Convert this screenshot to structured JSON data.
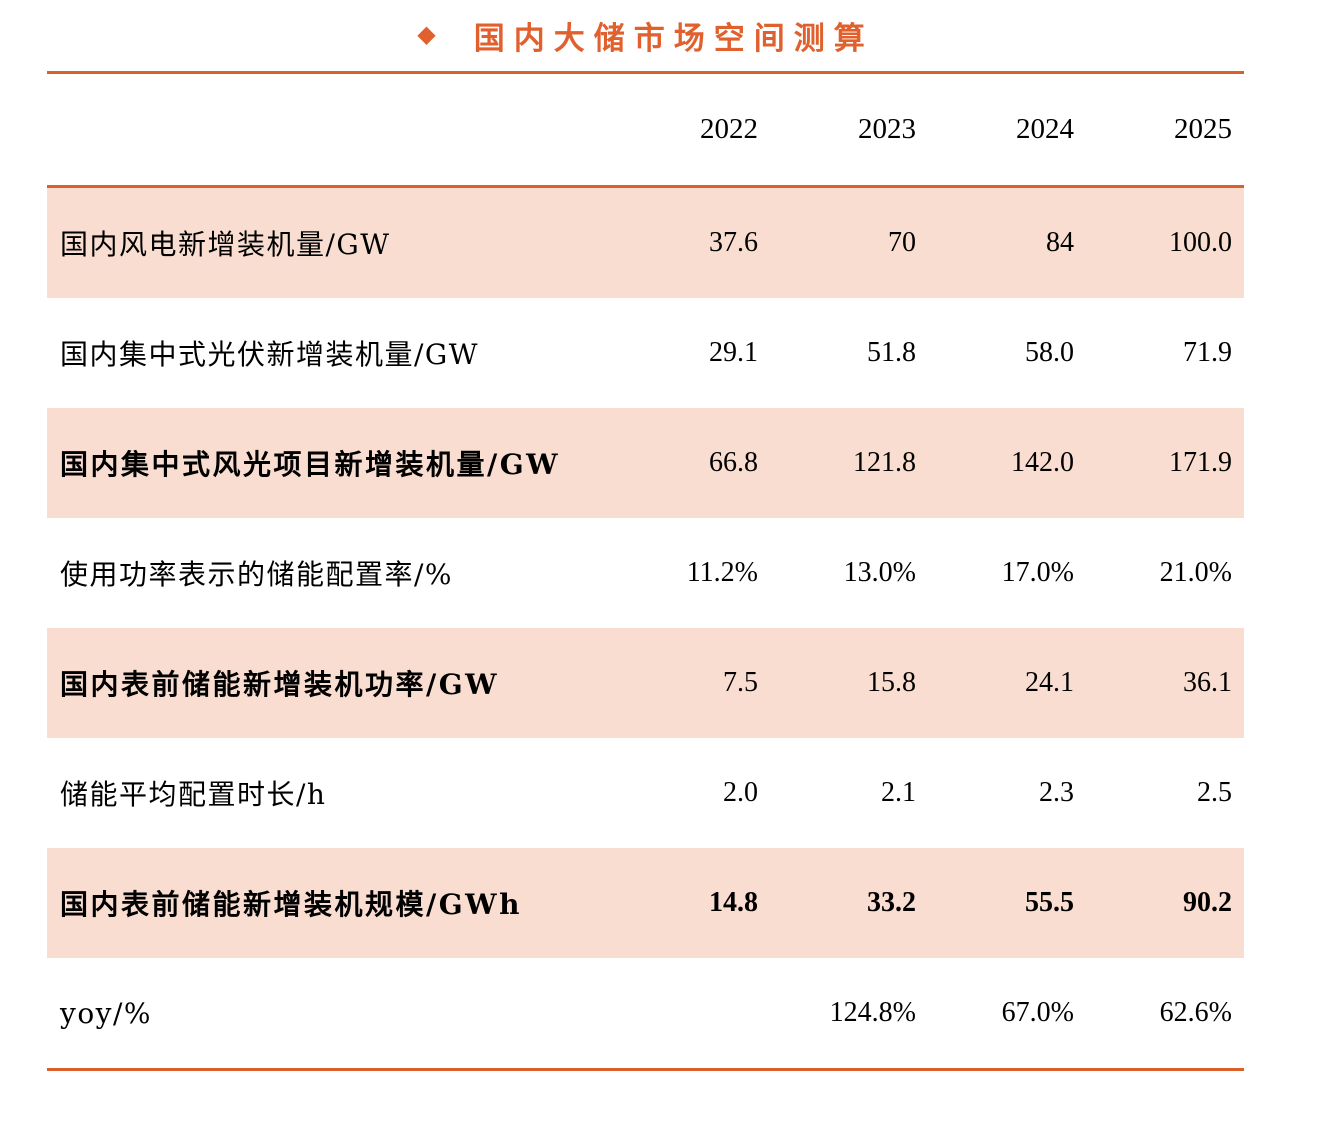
{
  "title": {
    "bullet": "◆",
    "text": "国内大储市场空间测算"
  },
  "columns": [
    "2022",
    "2023",
    "2024",
    "2025"
  ],
  "rows": [
    {
      "label": "国内风电新增装机量/GW",
      "values": [
        "37.6",
        "70",
        "84",
        "100.0"
      ]
    },
    {
      "label": "国内集中式光伏新增装机量/GW",
      "values": [
        "29.1",
        "51.8",
        "58.0",
        "71.9"
      ]
    },
    {
      "label": "国内集中式风光项目新增装机量/GW",
      "values": [
        "66.8",
        "121.8",
        "142.0",
        "171.9"
      ]
    },
    {
      "label": "使用功率表示的储能配置率/%",
      "values": [
        "11.2%",
        "13.0%",
        "17.0%",
        "21.0%"
      ]
    },
    {
      "label": "国内表前储能新增装机功率/GW",
      "values": [
        "7.5",
        "15.8",
        "24.1",
        "36.1"
      ]
    },
    {
      "label": "储能平均配置时长/h",
      "values": [
        "2.0",
        "2.1",
        "2.3",
        "2.5"
      ]
    },
    {
      "label": "国内表前储能新增装机规模/GWh",
      "values": [
        "14.8",
        "33.2",
        "55.5",
        "90.2"
      ]
    },
    {
      "label": "yoy/%",
      "values": [
        "",
        "124.8%",
        "67.0%",
        "62.6%"
      ]
    }
  ],
  "colors": {
    "accent_orange": "#d95f2b",
    "title_orange": "#e0612e",
    "row_shade": "#f9ddd0",
    "text": "#000000"
  },
  "chart_data": {
    "type": "table",
    "title": "国内大储市场空间测算",
    "columns": [
      "",
      "2022",
      "2023",
      "2024",
      "2025"
    ],
    "rows": [
      [
        "国内风电新增装机量/GW",
        37.6,
        70,
        84,
        100.0
      ],
      [
        "国内集中式光伏新增装机量/GW",
        29.1,
        51.8,
        58.0,
        71.9
      ],
      [
        "国内集中式风光项目新增装机量/GW",
        66.8,
        121.8,
        142.0,
        171.9
      ],
      [
        "使用功率表示的储能配置率/%",
        "11.2%",
        "13.0%",
        "17.0%",
        "21.0%"
      ],
      [
        "国内表前储能新增装机功率/GW",
        7.5,
        15.8,
        24.1,
        36.1
      ],
      [
        "储能平均配置时长/h",
        2.0,
        2.1,
        2.3,
        2.5
      ],
      [
        "国内表前储能新增装机规模/GWh",
        14.8,
        33.2,
        55.5,
        90.2
      ],
      [
        "yoy/%",
        null,
        "124.8%",
        "67.0%",
        "62.6%"
      ]
    ]
  }
}
